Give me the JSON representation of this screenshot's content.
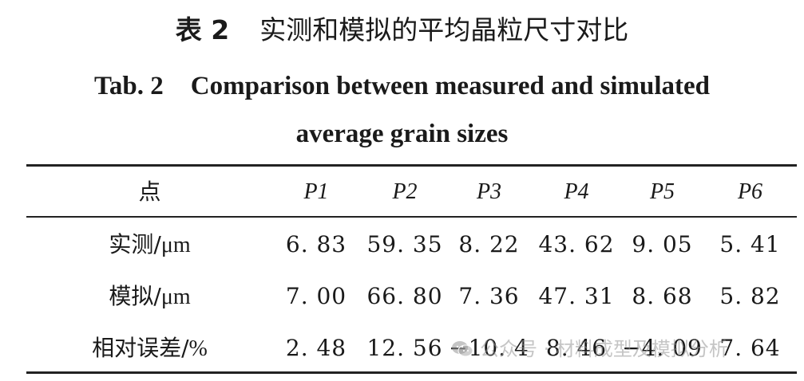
{
  "title_cn": {
    "label": "表 2",
    "text": "实测和模拟的平均晶粒尺寸对比"
  },
  "title_en": {
    "label": "Tab. 2",
    "line1": "Comparison between measured and simulated",
    "line2": "average grain sizes"
  },
  "table": {
    "header": [
      "点",
      "P1",
      "P2",
      "P3",
      "P4",
      "P5",
      "P6"
    ],
    "rows": [
      {
        "label": "实测/",
        "unit": "μm",
        "values": [
          "6. 83",
          "59. 35",
          "8. 22",
          "43. 62",
          "9. 05",
          "5. 41"
        ]
      },
      {
        "label": "模拟/",
        "unit": "μm",
        "values": [
          "7. 00",
          "66. 80",
          "7. 36",
          "47. 31",
          "8. 68",
          "5. 82"
        ]
      },
      {
        "label": "相对误差/",
        "unit": "%",
        "values": [
          "2. 48",
          "12. 56",
          "−10. 4",
          "8. 46",
          "−4. 09",
          "7. 64"
        ]
      }
    ]
  },
  "watermark": {
    "text": "公众号 · 材料成型及模拟分析",
    "icon": "wechat-icon"
  }
}
